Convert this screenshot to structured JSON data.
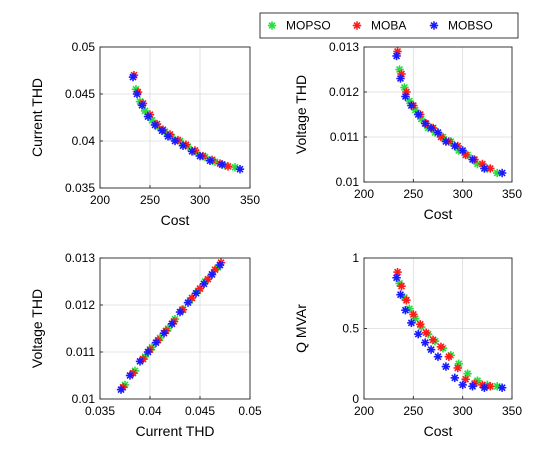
{
  "legend": {
    "entries": [
      {
        "name": "MOPSO",
        "color": "#22e03a"
      },
      {
        "name": "MOBA",
        "color": "#ff1a1a"
      },
      {
        "name": "MOBSO",
        "color": "#1a1aff"
      }
    ],
    "placement": "top-right"
  },
  "chart_data": [
    {
      "type": "scatter",
      "xlabel": "Cost",
      "ylabel": "Current THD",
      "xlim": [
        200,
        350
      ],
      "ylim": [
        0.035,
        0.05
      ],
      "xticks": [
        "200",
        "250",
        "300",
        "350"
      ],
      "yticks": [
        "0.035",
        "0.04",
        "0.045",
        "0.05"
      ],
      "series": [
        {
          "name": "MOPSO",
          "x": [
            236,
            240,
            245,
            252,
            258,
            265,
            272,
            280,
            288,
            296,
            305,
            315,
            325,
            335
          ],
          "y": [
            0.0455,
            0.0442,
            0.0432,
            0.0422,
            0.0415,
            0.041,
            0.0404,
            0.04,
            0.0394,
            0.0388,
            0.0383,
            0.0378,
            0.0374,
            0.0372
          ]
        },
        {
          "name": "MOBA",
          "x": [
            234,
            238,
            243,
            250,
            257,
            263,
            270,
            278,
            286,
            295,
            303,
            312,
            320,
            328
          ],
          "y": [
            0.047,
            0.0452,
            0.044,
            0.0428,
            0.0418,
            0.0412,
            0.0407,
            0.0401,
            0.0396,
            0.039,
            0.0384,
            0.038,
            0.0376,
            0.0373
          ]
        },
        {
          "name": "MOBSO",
          "x": [
            233,
            237,
            242,
            248,
            255,
            262,
            268,
            275,
            283,
            292,
            300,
            310,
            322,
            340
          ],
          "y": [
            0.0468,
            0.045,
            0.0438,
            0.0426,
            0.0417,
            0.0411,
            0.0405,
            0.04,
            0.0395,
            0.0389,
            0.0384,
            0.0379,
            0.0375,
            0.037
          ]
        }
      ]
    },
    {
      "type": "scatter",
      "xlabel": "Cost",
      "ylabel": "Voltage THD",
      "xlim": [
        200,
        350
      ],
      "ylim": [
        0.01,
        0.013
      ],
      "xticks": [
        "200",
        "250",
        "300",
        "350"
      ],
      "yticks": [
        "0.01",
        "0.011",
        "0.012",
        "0.013"
      ],
      "series": [
        {
          "name": "MOPSO",
          "x": [
            236,
            241,
            246,
            252,
            258,
            265,
            272,
            280,
            288,
            296,
            305,
            315,
            325,
            335
          ],
          "y": [
            0.0125,
            0.0121,
            0.0118,
            0.0116,
            0.0114,
            0.0112,
            0.0111,
            0.011,
            0.0109,
            0.0107,
            0.0106,
            0.0104,
            0.0103,
            0.0102
          ]
        },
        {
          "name": "MOBA",
          "x": [
            234,
            238,
            243,
            250,
            257,
            263,
            270,
            278,
            286,
            295,
            303,
            312,
            320,
            328
          ],
          "y": [
            0.0129,
            0.0124,
            0.012,
            0.0117,
            0.0115,
            0.0113,
            0.0112,
            0.011,
            0.0109,
            0.0108,
            0.0106,
            0.0105,
            0.0104,
            0.0103
          ]
        },
        {
          "name": "MOBSO",
          "x": [
            233,
            237,
            242,
            248,
            255,
            262,
            268,
            275,
            283,
            292,
            300,
            310,
            322,
            340
          ],
          "y": [
            0.0128,
            0.0123,
            0.0119,
            0.0117,
            0.0115,
            0.0113,
            0.0112,
            0.0111,
            0.0109,
            0.0108,
            0.0107,
            0.0105,
            0.0103,
            0.0102
          ]
        }
      ]
    },
    {
      "type": "scatter",
      "xlabel": "Current THD",
      "ylabel": "Voltage THD",
      "xlim": [
        0.035,
        0.05
      ],
      "ylim": [
        0.01,
        0.013
      ],
      "xticks": [
        "0.035",
        "0.04",
        "0.045",
        "0.05"
      ],
      "yticks": [
        "0.01",
        "0.011",
        "0.012",
        "0.013"
      ],
      "series": [
        {
          "name": "MOPSO",
          "x": [
            0.0375,
            0.0385,
            0.0395,
            0.0402,
            0.041,
            0.0418,
            0.0425,
            0.0432,
            0.044,
            0.0448,
            0.0455,
            0.0462,
            0.0468
          ],
          "y": [
            0.0103,
            0.0106,
            0.0109,
            0.0111,
            0.0113,
            0.0115,
            0.0117,
            0.0119,
            0.0121,
            0.0123,
            0.0125,
            0.01265,
            0.0128
          ]
        },
        {
          "name": "MOBA",
          "x": [
            0.0373,
            0.0383,
            0.0393,
            0.04,
            0.0408,
            0.0416,
            0.0424,
            0.0433,
            0.0442,
            0.045,
            0.0458,
            0.0465,
            0.0471
          ],
          "y": [
            0.01025,
            0.01055,
            0.01085,
            0.01105,
            0.01125,
            0.01145,
            0.01165,
            0.0119,
            0.01215,
            0.01235,
            0.01255,
            0.01275,
            0.0129
          ]
        },
        {
          "name": "MOBSO",
          "x": [
            0.0371,
            0.038,
            0.039,
            0.0398,
            0.0406,
            0.0414,
            0.0422,
            0.043,
            0.0438,
            0.0446,
            0.0454,
            0.0462,
            0.047
          ],
          "y": [
            0.0102,
            0.0105,
            0.0108,
            0.011,
            0.0112,
            0.0114,
            0.0116,
            0.01185,
            0.01205,
            0.01225,
            0.01245,
            0.01265,
            0.01285
          ]
        }
      ]
    },
    {
      "type": "scatter",
      "xlabel": "Cost",
      "ylabel": "Q MVAr",
      "xlim": [
        200,
        350
      ],
      "ylim": [
        0,
        1
      ],
      "xticks": [
        "200",
        "250",
        "300",
        "350"
      ],
      "yticks": [
        "0",
        "0.5",
        "1"
      ],
      "series": [
        {
          "name": "MOPSO",
          "x": [
            236,
            241,
            246,
            252,
            258,
            265,
            272,
            280,
            288,
            296,
            305,
            315,
            325,
            335
          ],
          "y": [
            0.82,
            0.72,
            0.64,
            0.57,
            0.51,
            0.46,
            0.41,
            0.36,
            0.31,
            0.25,
            0.18,
            0.13,
            0.1,
            0.09
          ]
        },
        {
          "name": "MOBA",
          "x": [
            234,
            238,
            243,
            250,
            257,
            263,
            270,
            278,
            286,
            295,
            303,
            312,
            320,
            328
          ],
          "y": [
            0.9,
            0.8,
            0.7,
            0.6,
            0.53,
            0.47,
            0.42,
            0.37,
            0.3,
            0.22,
            0.14,
            0.11,
            0.1,
            0.09
          ]
        },
        {
          "name": "MOBSO",
          "x": [
            233,
            237,
            242,
            248,
            255,
            262,
            268,
            275,
            283,
            292,
            300,
            310,
            322,
            340
          ],
          "y": [
            0.86,
            0.74,
            0.63,
            0.54,
            0.46,
            0.4,
            0.35,
            0.3,
            0.23,
            0.15,
            0.1,
            0.09,
            0.08,
            0.08
          ]
        }
      ]
    }
  ]
}
